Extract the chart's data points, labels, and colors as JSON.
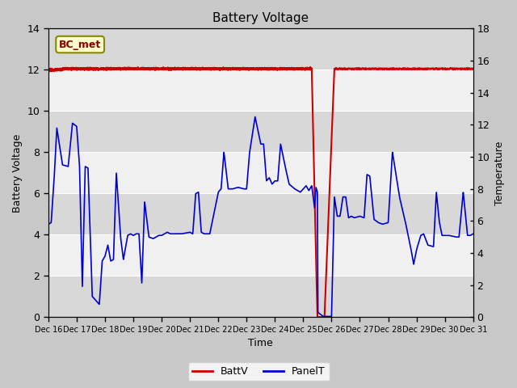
{
  "title": "Battery Voltage",
  "xlabel": "Time",
  "ylabel_left": "Battery Voltage",
  "ylabel_right": "Temperature",
  "xlim": [
    0,
    15
  ],
  "ylim_left": [
    0,
    14
  ],
  "ylim_right": [
    0,
    18
  ],
  "yticks_left": [
    0,
    2,
    4,
    6,
    8,
    10,
    12,
    14
  ],
  "yticks_right": [
    0,
    2,
    4,
    6,
    8,
    10,
    12,
    14,
    16,
    18
  ],
  "xtick_labels": [
    "Dec 16",
    "Dec 17",
    "Dec 18",
    "Dec 19",
    "Dec 20",
    "Dec 21",
    "Dec 22",
    "Dec 23",
    "Dec 24",
    "Dec 25",
    "Dec 26",
    "Dec 27",
    "Dec 28",
    "Dec 29",
    "Dec 30",
    "Dec 31"
  ],
  "fig_bg": "#c8c8c8",
  "plot_bg": "#e8e8e8",
  "band_dark": "#d8d8d8",
  "band_light": "#f0f0f0",
  "legend_label_batt": "BattV",
  "legend_label_panel": "PanelT",
  "batt_color": "#cc0000",
  "panel_color": "#0000cc",
  "annotation_text": "BC_met",
  "annotation_fg": "#880000",
  "annotation_bg": "#ffffcc",
  "annotation_edge": "#888800"
}
